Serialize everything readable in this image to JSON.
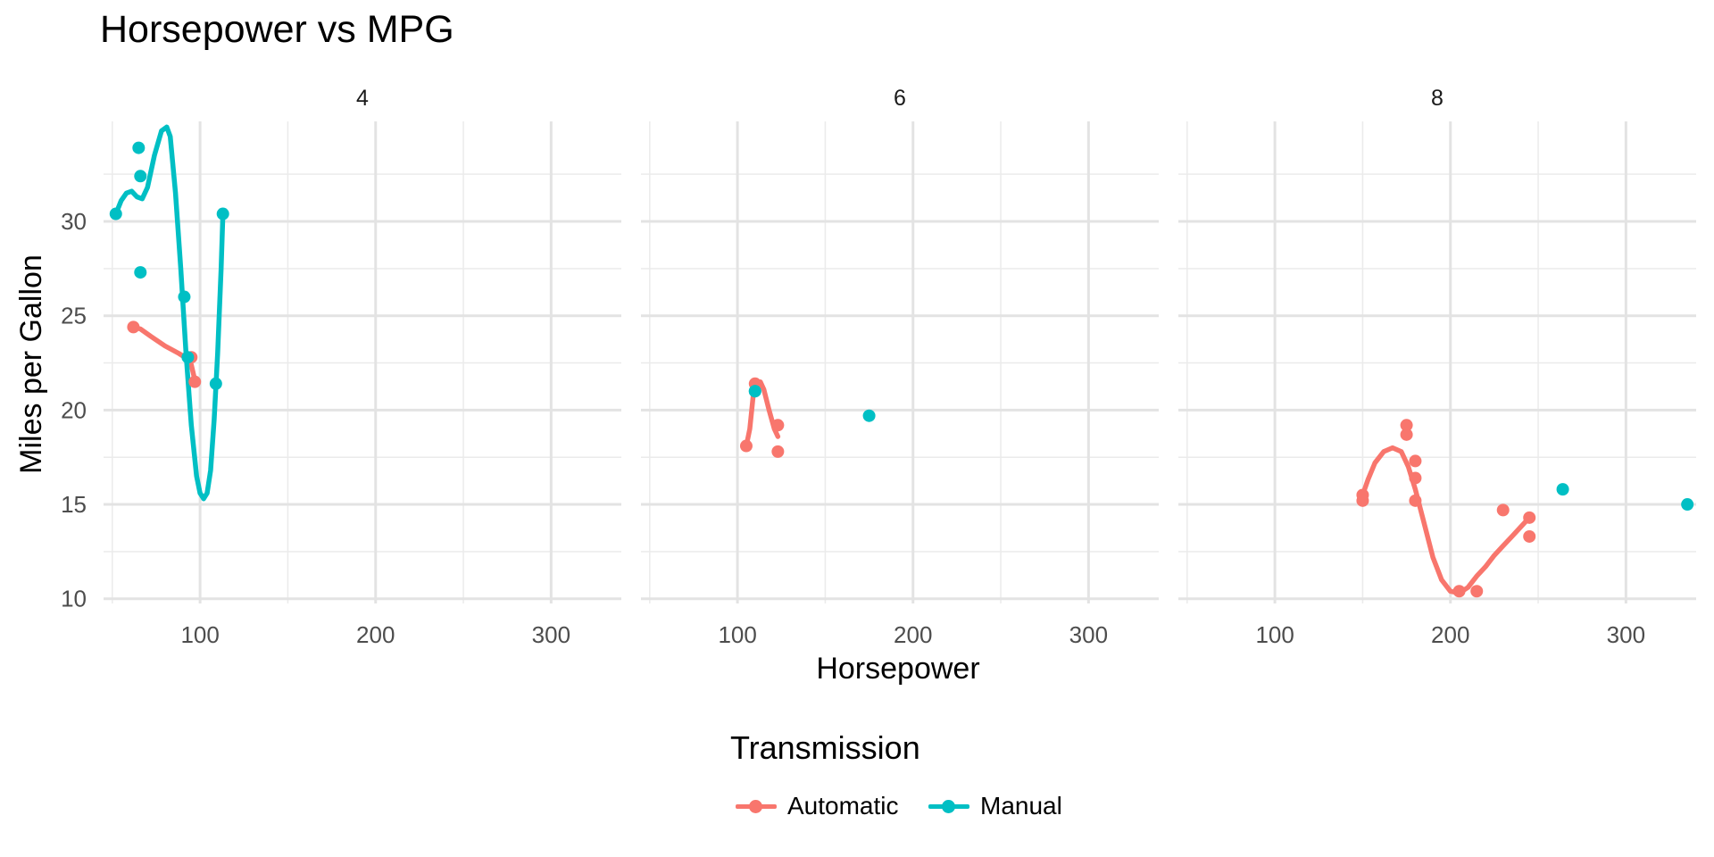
{
  "chart_data": {
    "type": "scatter",
    "title": "Horsepower vs MPG",
    "xlabel": "Horsepower",
    "ylabel": "Miles per Gallon",
    "xlim": [
      45,
      340
    ],
    "ylim": [
      9.75,
      35.3
    ],
    "xticks": [
      100,
      200,
      300
    ],
    "yticks": [
      10,
      15,
      20,
      25,
      30
    ],
    "grid": true,
    "legend": {
      "title": "Transmission",
      "position": "bottom",
      "entries": [
        {
          "name": "Automatic",
          "color": "#F8766D"
        },
        {
          "name": "Manual",
          "color": "#00BFC4"
        }
      ]
    },
    "panels": [
      {
        "label": "4",
        "series": [
          {
            "name": "Automatic",
            "color": "#F8766D",
            "points": [
              [
                62,
                24.4
              ],
              [
                95,
                22.8
              ],
              [
                97,
                21.5
              ]
            ],
            "smooth": [
              [
                62,
                24.4
              ],
              [
                66,
                24.3
              ],
              [
                72,
                23.9
              ],
              [
                80,
                23.4
              ],
              [
                88,
                23.0
              ],
              [
                93,
                22.7
              ],
              [
                95,
                22.4
              ],
              [
                97,
                21.6
              ]
            ]
          },
          {
            "name": "Manual",
            "color": "#00BFC4",
            "points": [
              [
                52,
                30.4
              ],
              [
                65,
                33.9
              ],
              [
                66,
                32.4
              ],
              [
                66,
                27.3
              ],
              [
                91,
                26.0
              ],
              [
                93,
                22.8
              ],
              [
                109,
                21.4
              ],
              [
                113,
                30.4
              ]
            ],
            "smooth": [
              [
                52,
                30.4
              ],
              [
                55,
                31.1
              ],
              [
                58,
                31.5
              ],
              [
                61,
                31.6
              ],
              [
                64,
                31.3
              ],
              [
                67,
                31.2
              ],
              [
                70,
                31.8
              ],
              [
                74,
                33.5
              ],
              [
                78,
                34.8
              ],
              [
                81,
                35.0
              ],
              [
                83,
                34.5
              ],
              [
                86,
                31.5
              ],
              [
                89,
                27.5
              ],
              [
                92,
                23.0
              ],
              [
                95,
                19.2
              ],
              [
                98,
                16.5
              ],
              [
                100,
                15.6
              ],
              [
                102,
                15.3
              ],
              [
                104,
                15.6
              ],
              [
                106,
                16.8
              ],
              [
                108,
                19.5
              ],
              [
                110,
                23.0
              ],
              [
                112,
                27.5
              ],
              [
                113,
                30.4
              ]
            ]
          }
        ]
      },
      {
        "label": "6",
        "series": [
          {
            "name": "Automatic",
            "color": "#F8766D",
            "points": [
              [
                105,
                18.1
              ],
              [
                110,
                21.4
              ],
              [
                123,
                19.2
              ],
              [
                123,
                17.8
              ]
            ],
            "smooth": [
              [
                105,
                18.1
              ],
              [
                107,
                19.0
              ],
              [
                109,
                20.8
              ],
              [
                111,
                21.4
              ],
              [
                113,
                21.5
              ],
              [
                115,
                21.1
              ],
              [
                118,
                20.0
              ],
              [
                121,
                19.0
              ],
              [
                123,
                18.6
              ]
            ]
          },
          {
            "name": "Manual",
            "color": "#00BFC4",
            "points": [
              [
                110,
                21.0
              ],
              [
                110,
                21.0
              ],
              [
                175,
                19.7
              ]
            ],
            "smooth": []
          }
        ]
      },
      {
        "label": "8",
        "series": [
          {
            "name": "Automatic",
            "color": "#F8766D",
            "points": [
              [
                150,
                15.5
              ],
              [
                150,
                15.2
              ],
              [
                175,
                19.2
              ],
              [
                175,
                18.7
              ],
              [
                180,
                17.3
              ],
              [
                180,
                16.4
              ],
              [
                180,
                15.2
              ],
              [
                205,
                10.4
              ],
              [
                215,
                10.4
              ],
              [
                230,
                14.7
              ],
              [
                245,
                14.3
              ],
              [
                245,
                13.3
              ]
            ],
            "smooth": [
              [
                150,
                15.5
              ],
              [
                153,
                16.3
              ],
              [
                157,
                17.2
              ],
              [
                162,
                17.8
              ],
              [
                167,
                18.0
              ],
              [
                172,
                17.8
              ],
              [
                176,
                17.0
              ],
              [
                180,
                15.8
              ],
              [
                185,
                14.0
              ],
              [
                190,
                12.2
              ],
              [
                195,
                11.0
              ],
              [
                200,
                10.4
              ],
              [
                205,
                10.3
              ],
              [
                210,
                10.6
              ],
              [
                215,
                11.2
              ],
              [
                220,
                11.7
              ],
              [
                225,
                12.3
              ],
              [
                230,
                12.8
              ],
              [
                235,
                13.3
              ],
              [
                240,
                13.8
              ],
              [
                245,
                14.3
              ]
            ]
          },
          {
            "name": "Manual",
            "color": "#00BFC4",
            "points": [
              [
                264,
                15.8
              ],
              [
                335,
                15.0
              ]
            ],
            "smooth": []
          }
        ]
      }
    ]
  }
}
